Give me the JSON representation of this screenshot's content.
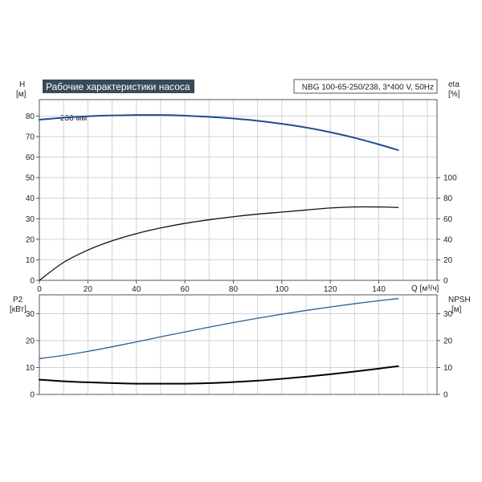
{
  "header": {
    "title": "Рабочие характеристики насоса",
    "info": "NBG 100-65-250/238, 3*400 V, 50Hz"
  },
  "colors": {
    "header_bg": "#3a4a58",
    "grid": "#d2d2d2",
    "frame": "#555555",
    "head_curve": "#1f4f8a",
    "p2_curve": "#2a5d96",
    "eta_curve": "#111111",
    "npsh_curve": "#000000"
  },
  "chart_data": [
    {
      "type": "line",
      "name": "top",
      "left_axis": {
        "label_line1": "H",
        "label_line2": "[м]",
        "ticks": [
          "0",
          "10",
          "20",
          "30",
          "40",
          "50",
          "60",
          "70",
          "80"
        ],
        "range": [
          0,
          88
        ]
      },
      "right_axis": {
        "label_line1": "eta",
        "label_line2": "[%]",
        "ticks": [
          "0",
          "20",
          "40",
          "60",
          "80",
          "100"
        ],
        "range": [
          0,
          176
        ]
      },
      "x_axis": {
        "label": "Q [м³/ч]",
        "ticks": [
          "0",
          "20",
          "40",
          "60",
          "80",
          "100",
          "120",
          "140"
        ],
        "range": [
          0,
          164
        ]
      },
      "annotation": "238 мм",
      "grid": true,
      "series": [
        {
          "key": "head",
          "axis": "left",
          "x": [
            0,
            10,
            20,
            30,
            40,
            50,
            60,
            70,
            80,
            90,
            100,
            110,
            120,
            130,
            140,
            148
          ],
          "y": [
            78.2,
            79.2,
            79.9,
            80.3,
            80.5,
            80.5,
            80.2,
            79.6,
            78.8,
            77.7,
            76.2,
            74.4,
            72.1,
            69.4,
            66.2,
            63.4
          ]
        },
        {
          "key": "eta",
          "axis": "right",
          "x": [
            0,
            10,
            20,
            30,
            40,
            50,
            60,
            70,
            80,
            90,
            100,
            110,
            120,
            130,
            140,
            148
          ],
          "y": [
            0,
            17.5,
            29.5,
            38.5,
            45.5,
            51,
            55.5,
            59,
            62,
            64.5,
            66.5,
            68.5,
            70.5,
            71.5,
            71.5,
            71
          ]
        }
      ]
    },
    {
      "type": "line",
      "name": "bottom",
      "left_axis": {
        "label_line1": "P2",
        "label_line2": "[кВт]",
        "ticks": [
          "0",
          "10",
          "20",
          "30"
        ],
        "range": [
          0,
          37
        ]
      },
      "right_axis": {
        "label_line1": "NPSH",
        "label_line2": "[м]",
        "ticks": [
          "0",
          "10",
          "20",
          "30"
        ],
        "range": [
          0,
          37
        ]
      },
      "x_axis": {
        "range": [
          0,
          164
        ]
      },
      "grid": true,
      "series": [
        {
          "key": "p2",
          "axis": "left",
          "x": [
            0,
            10,
            20,
            30,
            40,
            50,
            60,
            70,
            80,
            90,
            100,
            110,
            120,
            130,
            140,
            148
          ],
          "y": [
            13.3,
            14.5,
            16,
            17.7,
            19.5,
            21.4,
            23.2,
            25,
            26.7,
            28.3,
            29.8,
            31.2,
            32.5,
            33.7,
            34.8,
            35.6
          ]
        },
        {
          "key": "npsh",
          "axis": "right",
          "x": [
            0,
            10,
            20,
            30,
            40,
            50,
            60,
            70,
            80,
            90,
            100,
            110,
            120,
            130,
            140,
            148
          ],
          "y": [
            5.5,
            4.9,
            4.5,
            4.2,
            4.0,
            4.0,
            4.0,
            4.2,
            4.6,
            5.1,
            5.8,
            6.6,
            7.5,
            8.5,
            9.6,
            10.5
          ]
        }
      ]
    }
  ]
}
